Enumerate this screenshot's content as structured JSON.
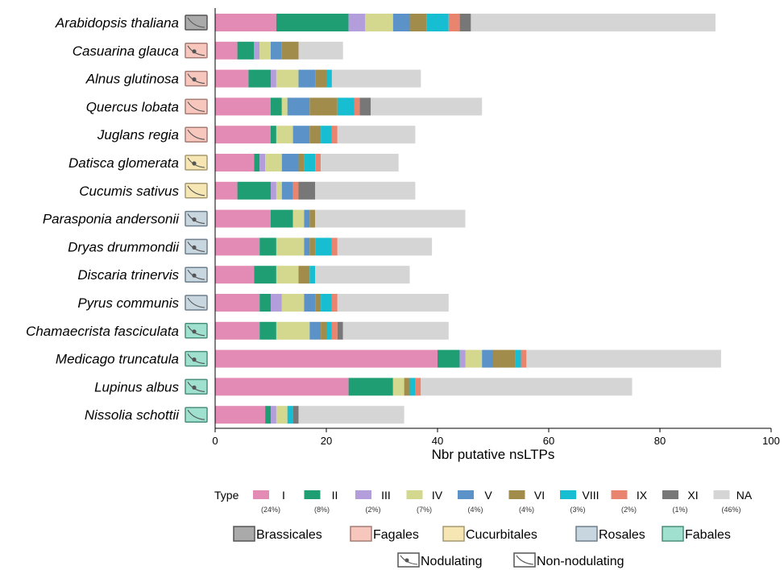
{
  "chart_data": {
    "type": "bar",
    "orientation": "horizontal",
    "stacked": true,
    "xlabel": "Nbr putative nsLTPs",
    "xlim": [
      0,
      100
    ],
    "xticks": [
      0,
      20,
      40,
      60,
      80,
      100
    ],
    "categories": [
      "Arabidopsis thaliana",
      "Casuarina glauca",
      "Alnus glutinosa",
      "Quercus lobata",
      "Juglans regia",
      "Datisca glomerata",
      "Cucumis sativus",
      "Parasponia andersonii",
      "Dryas drummondii",
      "Discaria trinervis",
      "Pyrus communis",
      "Chamaecrista fasciculata",
      "Medicago truncatula",
      "Lupinus albus",
      "Nissolia schottii"
    ],
    "category_order": [
      "Brassicales",
      "Fagales",
      "Fagales",
      "Fagales",
      "Fagales",
      "Cucurbitales",
      "Cucurbitales",
      "Rosales",
      "Rosales",
      "Rosales",
      "Rosales",
      "Fabales",
      "Fabales",
      "Fabales",
      "Fabales"
    ],
    "category_nodulating": [
      false,
      true,
      true,
      false,
      false,
      true,
      false,
      true,
      true,
      true,
      false,
      true,
      true,
      true,
      false
    ],
    "series": [
      {
        "name": "I",
        "pct": "(24%)",
        "color": "#e38bb4",
        "values": [
          11,
          4,
          6,
          10,
          10,
          7,
          4,
          10,
          8,
          7,
          8,
          8,
          40,
          24,
          9
        ]
      },
      {
        "name": "II",
        "pct": "(8%)",
        "color": "#1f9e74",
        "values": [
          13,
          3,
          4,
          2,
          1,
          1,
          6,
          4,
          3,
          4,
          2,
          3,
          4,
          8,
          1
        ]
      },
      {
        "name": "III",
        "pct": "(2%)",
        "color": "#b39ddb",
        "values": [
          3,
          1,
          1,
          0,
          0,
          1,
          1,
          0,
          0,
          0,
          2,
          0,
          1,
          0,
          1
        ]
      },
      {
        "name": "IV",
        "pct": "(7%)",
        "color": "#d4d88e",
        "values": [
          5,
          2,
          4,
          1,
          3,
          3,
          1,
          2,
          5,
          4,
          4,
          6,
          3,
          2,
          2
        ]
      },
      {
        "name": "V",
        "pct": "(4%)",
        "color": "#5b93c9",
        "values": [
          3,
          2,
          3,
          4,
          3,
          3,
          2,
          1,
          1,
          0,
          2,
          2,
          2,
          0,
          0
        ]
      },
      {
        "name": "VI",
        "pct": "(4%)",
        "color": "#a28c4c",
        "values": [
          3,
          3,
          2,
          5,
          2,
          1,
          0,
          1,
          1,
          2,
          1,
          1,
          4,
          1,
          0
        ]
      },
      {
        "name": "VIII",
        "pct": "(3%)",
        "color": "#17bdd1",
        "values": [
          4,
          0,
          1,
          3,
          2,
          2,
          0,
          0,
          3,
          1,
          2,
          1,
          1,
          1,
          1
        ]
      },
      {
        "name": "IX",
        "pct": "(2%)",
        "color": "#e9846f",
        "values": [
          2,
          0,
          0,
          1,
          1,
          1,
          1,
          0,
          1,
          0,
          1,
          1,
          1,
          1,
          0
        ]
      },
      {
        "name": "XI",
        "pct": "(1%)",
        "color": "#777777",
        "values": [
          2,
          0,
          0,
          2,
          0,
          0,
          3,
          0,
          0,
          0,
          0,
          1,
          0,
          0,
          1
        ]
      },
      {
        "name": "NA",
        "pct": "(46%)",
        "color": "#d5d5d5",
        "values": [
          44,
          8,
          16,
          20,
          14,
          14,
          18,
          27,
          17,
          17,
          20,
          19,
          35,
          38,
          19
        ]
      }
    ]
  },
  "legend": {
    "type_title": "Type",
    "orders": [
      {
        "name": "Brassicales",
        "fill": "#aaaaaa",
        "stroke": "#555555"
      },
      {
        "name": "Fagales",
        "fill": "#f7c7bd",
        "stroke": "#a47c74"
      },
      {
        "name": "Cucurbitales",
        "fill": "#f5e6b3",
        "stroke": "#a59870"
      },
      {
        "name": "Rosales",
        "fill": "#c8d6e0",
        "stroke": "#6d7f8c"
      },
      {
        "name": "Fabales",
        "fill": "#9fe0ce",
        "stroke": "#4c8e7c"
      }
    ],
    "nodulation": [
      {
        "name": "Nodulating",
        "icon": "nodulating-icon"
      },
      {
        "name": "Non-nodulating",
        "icon": "non-nodulating-icon"
      }
    ]
  }
}
